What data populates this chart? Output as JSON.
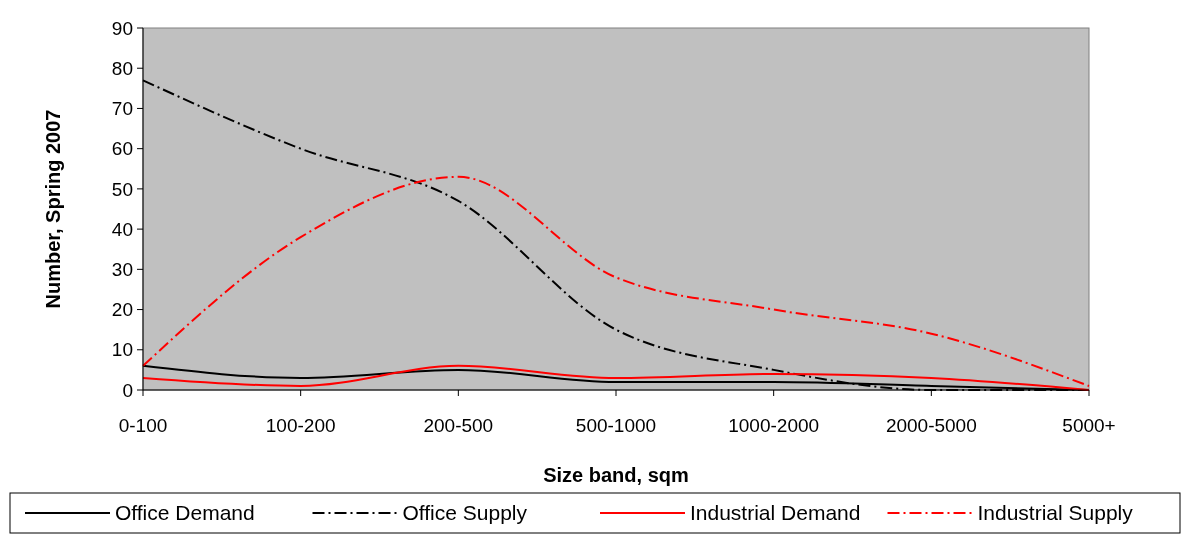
{
  "chart_data": {
    "type": "line",
    "xlabel": "Size band, sqm",
    "ylabel": "Number, Spring 2007",
    "categories": [
      "0-100",
      "100-200",
      "200-500",
      "500-1000",
      "1000-2000",
      "2000-5000",
      "5000+"
    ],
    "series": [
      {
        "name": "Office Demand",
        "color": "#000000",
        "line_style": "solid",
        "values": [
          6,
          3,
          5,
          2,
          2,
          1,
          0
        ]
      },
      {
        "name": "Office Supply",
        "color": "#000000",
        "line_style": "dashdot",
        "values": [
          77,
          60,
          47,
          15,
          5,
          0,
          0
        ]
      },
      {
        "name": "Industrial Demand",
        "color": "#ff0000",
        "line_style": "solid",
        "values": [
          3,
          1,
          6,
          3,
          4,
          3,
          0
        ]
      },
      {
        "name": "Industrial Supply",
        "color": "#ff0000",
        "line_style": "dashdot",
        "values": [
          6,
          38,
          53,
          28,
          20,
          14,
          1
        ]
      }
    ],
    "ylim": [
      0,
      90
    ],
    "yticks": [
      0,
      10,
      20,
      30,
      40,
      50,
      60,
      70,
      80,
      90
    ],
    "grid": false,
    "legend": "bottom",
    "marker": "none"
  }
}
